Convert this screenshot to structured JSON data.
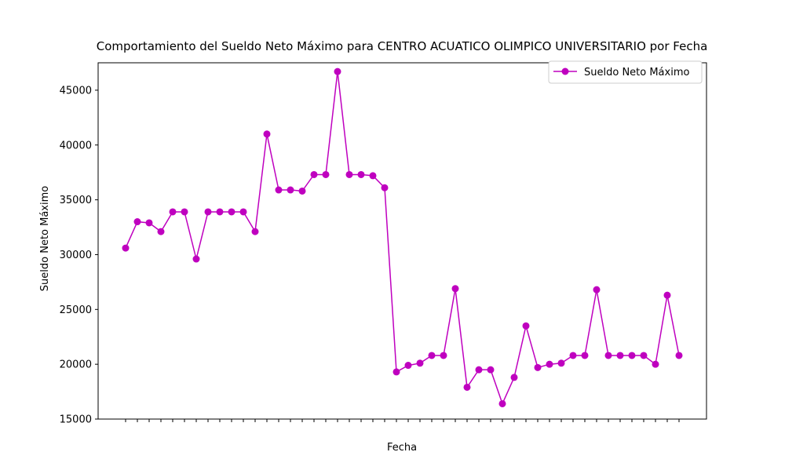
{
  "chart_data": {
    "type": "line",
    "title": "Comportamiento del Sueldo Neto Máximo para CENTRO ACUATICO OLIMPICO UNIVERSITARIO por Fecha",
    "xlabel": "Fecha",
    "ylabel": "Sueldo Neto Máximo",
    "ylim": [
      15000,
      47500
    ],
    "yticks": [
      15000,
      20000,
      25000,
      30000,
      35000,
      40000,
      45000
    ],
    "grid": false,
    "legend_position": "top-right",
    "x_tick_labels_legible": false,
    "series": [
      {
        "name": "Sueldo Neto Máximo",
        "color": "#bf00bf",
        "marker": "circle",
        "values": [
          30600,
          33000,
          32900,
          32100,
          33900,
          33900,
          29600,
          33900,
          33900,
          33900,
          33900,
          32100,
          41000,
          35900,
          35900,
          35800,
          37300,
          37300,
          46700,
          37300,
          37300,
          37200,
          36100,
          19300,
          19900,
          20100,
          20800,
          20800,
          26900,
          17900,
          19500,
          19500,
          16400,
          18800,
          23500,
          19700,
          20000,
          20100,
          20800,
          20800,
          26800,
          20800,
          20800,
          20800,
          20800,
          20000,
          26300,
          20800
        ]
      }
    ]
  }
}
